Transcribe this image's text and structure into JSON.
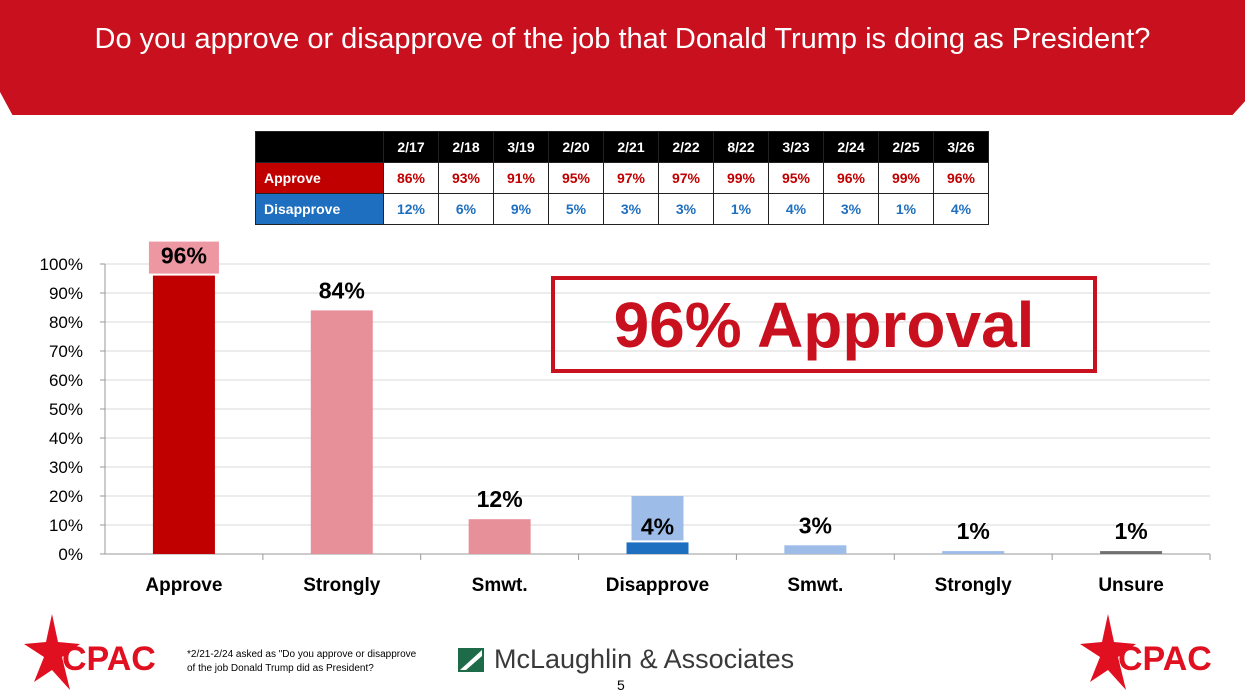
{
  "title": "Do you approve or disapprove of the job that Donald Trump is doing as President?",
  "table": {
    "dates": [
      "2/17",
      "2/18",
      "3/19",
      "2/20",
      "2/21",
      "2/22",
      "8/22",
      "3/23",
      "2/24",
      "2/25",
      "3/26"
    ],
    "rows": [
      {
        "label": "Approve",
        "color": "#c00000",
        "values": [
          "86%",
          "93%",
          "91%",
          "95%",
          "97%",
          "97%",
          "99%",
          "95%",
          "96%",
          "99%",
          "96%"
        ]
      },
      {
        "label": "Disapprove",
        "color": "#1f6fc0",
        "values": [
          "12%",
          "6%",
          "9%",
          "5%",
          "3%",
          "3%",
          "1%",
          "4%",
          "3%",
          "1%",
          "4%"
        ]
      }
    ]
  },
  "callout": "96% Approval",
  "chart_data": {
    "type": "bar",
    "categories": [
      "Approve",
      "Strongly",
      "Smwt.",
      "Disapprove",
      "Smwt.",
      "Strongly",
      "Unsure"
    ],
    "values": [
      96,
      84,
      12,
      4,
      3,
      1,
      1
    ],
    "labels": [
      "96%",
      "84%",
      "12%",
      "4%",
      "3%",
      "1%",
      "1%"
    ],
    "colors": [
      "#c00000",
      "#e8909a",
      "#e8909a",
      "#1f6fc0",
      "#9dbde8",
      "#9dbde8",
      "#707070"
    ],
    "ylim": [
      0,
      100
    ],
    "yticks": [
      "0%",
      "10%",
      "20%",
      "30%",
      "40%",
      "50%",
      "60%",
      "70%",
      "80%",
      "90%",
      "100%"
    ],
    "grid": true
  },
  "footer": {
    "logo_text": "CPAC",
    "note": "*2/21-2/24 asked as \"Do you approve or disapprove of the job Donald Trump did as President?",
    "firm": "McLaughlin & Associates",
    "page": "5"
  }
}
